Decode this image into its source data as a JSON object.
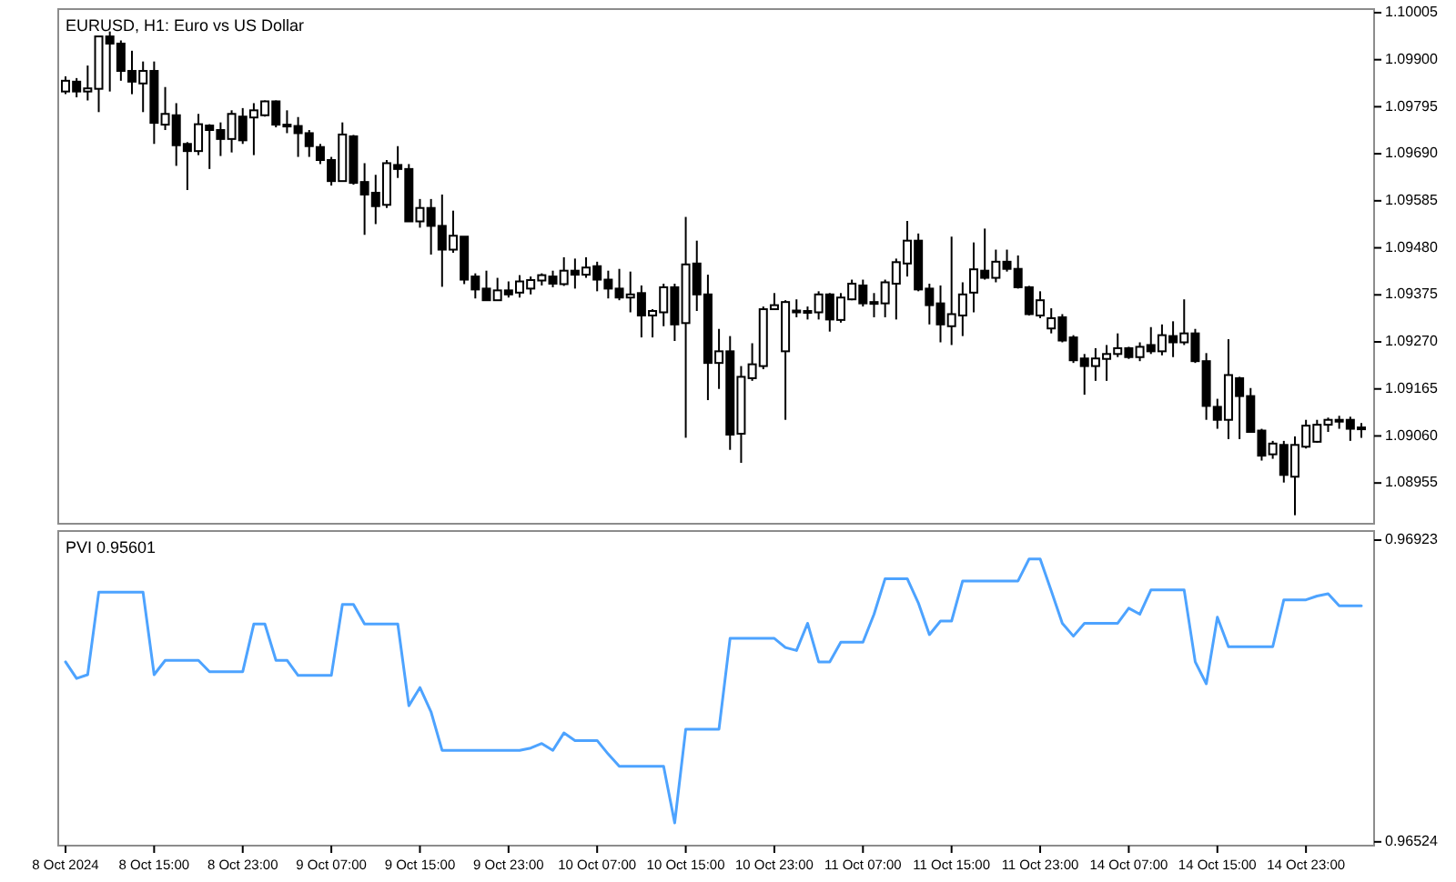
{
  "chart_data": [
    {
      "type": "candlestick",
      "title": "EURUSD, H1:  Euro vs US Dollar",
      "tick_labels": "y",
      "color": "#000000",
      "categories": [
        null,
        null,
        null,
        null,
        null,
        null,
        null,
        null,
        null,
        null,
        null,
        null,
        null,
        null,
        null,
        null,
        null,
        null,
        null,
        null,
        null,
        null,
        null,
        null,
        null,
        null,
        null,
        null,
        null,
        null,
        null,
        null,
        null,
        null,
        null,
        null,
        null,
        null,
        null,
        null,
        null,
        null,
        null,
        null,
        null,
        null,
        null,
        null,
        null,
        null,
        null,
        null,
        null,
        null,
        null,
        null,
        null,
        null,
        null,
        null,
        null,
        null,
        null,
        null,
        null,
        null,
        null,
        null,
        null,
        null,
        null,
        null,
        null,
        null,
        null,
        null,
        null,
        null,
        null,
        null,
        null,
        null,
        null,
        null,
        null,
        null,
        null,
        null,
        null,
        null,
        null,
        null,
        null,
        null,
        null,
        null,
        null,
        null,
        null,
        null,
        null,
        null,
        null,
        null,
        null,
        null,
        null,
        null,
        null,
        null,
        null,
        null,
        null,
        null,
        null,
        null,
        null,
        null
      ],
      "ohlc": [
        [
          1.09829,
          1.09863,
          1.09823,
          1.09853
        ],
        [
          1.09851,
          1.09859,
          1.09816,
          1.09829
        ],
        [
          1.09829,
          1.09887,
          1.09809,
          1.09836
        ],
        [
          1.09835,
          1.09952,
          1.09783,
          1.09952
        ],
        [
          1.09952,
          1.09963,
          1.09829,
          1.09936
        ],
        [
          1.09936,
          1.09943,
          1.09853,
          1.09875
        ],
        [
          1.09875,
          1.0992,
          1.09823,
          1.09851
        ],
        [
          1.09847,
          1.09896,
          1.09783,
          1.09875
        ],
        [
          1.09875,
          1.09896,
          1.09712,
          1.09759
        ],
        [
          1.09755,
          1.09839,
          1.09743,
          1.09779
        ],
        [
          1.09776,
          1.09803,
          1.09663,
          1.09709
        ],
        [
          1.09712,
          1.09716,
          1.09609,
          1.09696
        ],
        [
          1.09696,
          1.09779,
          1.09687,
          1.09756
        ],
        [
          1.09753,
          1.09756,
          1.09656,
          1.09743
        ],
        [
          1.09743,
          1.0976,
          1.09685,
          1.09723
        ],
        [
          1.09723,
          1.09787,
          1.09693,
          1.09779
        ],
        [
          1.09773,
          1.09792,
          1.09712,
          1.0972
        ],
        [
          1.09771,
          1.09803,
          1.09687,
          1.09787
        ],
        [
          1.09776,
          1.09809,
          1.09773,
          1.09807
        ],
        [
          1.09807,
          1.09809,
          1.09749,
          1.09755
        ],
        [
          1.09755,
          1.09787,
          1.09736,
          1.09752
        ],
        [
          1.09752,
          1.09772,
          1.09683,
          1.09736
        ],
        [
          1.09736,
          1.09743,
          1.09683,
          1.09707
        ],
        [
          1.09705,
          1.09712,
          1.09667,
          1.09676
        ],
        [
          1.09676,
          1.09683,
          1.09619,
          1.09629
        ],
        [
          1.09629,
          1.0976,
          1.09629,
          1.09733
        ],
        [
          1.09729,
          1.09732,
          1.09621,
          1.09625
        ],
        [
          1.09627,
          1.09669,
          1.09509,
          1.09599
        ],
        [
          1.09603,
          1.09643,
          1.09533,
          1.09573
        ],
        [
          1.09576,
          1.09676,
          1.09569,
          1.09669
        ],
        [
          1.09665,
          1.09707,
          1.09636,
          1.09656
        ],
        [
          1.09656,
          1.09667,
          1.09539,
          1.09539
        ],
        [
          1.09539,
          1.09589,
          1.09525,
          1.09569
        ],
        [
          1.09569,
          1.09589,
          1.09465,
          1.09529
        ],
        [
          1.09529,
          1.09599,
          1.09393,
          1.09476
        ],
        [
          1.09476,
          1.09563,
          1.09469,
          1.09507
        ],
        [
          1.09505,
          1.09505,
          1.09399,
          1.09409
        ],
        [
          1.09416,
          1.09423,
          1.09367,
          1.09387
        ],
        [
          1.09389,
          1.09429,
          1.09363,
          1.09363
        ],
        [
          1.09363,
          1.09413,
          1.09363,
          1.09385
        ],
        [
          1.09385,
          1.09405,
          1.09369,
          1.09376
        ],
        [
          1.0938,
          1.09419,
          1.09369,
          1.09405
        ],
        [
          1.09389,
          1.09416,
          1.09376,
          1.09408
        ],
        [
          1.09407,
          1.09423,
          1.09396,
          1.09419
        ],
        [
          1.09416,
          1.09429,
          1.09392,
          1.094
        ],
        [
          1.09399,
          1.09459,
          1.09395,
          1.09429
        ],
        [
          1.09429,
          1.09456,
          1.09389,
          1.0942
        ],
        [
          1.0942,
          1.09459,
          1.09413,
          1.09436
        ],
        [
          1.09439,
          1.09449,
          1.09383,
          1.09409
        ],
        [
          1.09409,
          1.09429,
          1.09367,
          1.09389
        ],
        [
          1.09389,
          1.09433,
          1.09363,
          1.09369
        ],
        [
          1.09369,
          1.09427,
          1.09336,
          1.09376
        ],
        [
          1.09379,
          1.09396,
          1.0928,
          1.09329
        ],
        [
          1.09329,
          1.09343,
          1.0928,
          1.09339
        ],
        [
          1.09336,
          1.094,
          1.09305,
          1.09392
        ],
        [
          1.09392,
          1.094,
          1.09272,
          1.09309
        ],
        [
          1.09312,
          1.09549,
          1.09056,
          1.09443
        ],
        [
          1.09445,
          1.09496,
          1.09339,
          1.09376
        ],
        [
          1.09376,
          1.0942,
          1.0914,
          1.09223
        ],
        [
          1.09223,
          1.09299,
          1.09165,
          1.09249
        ],
        [
          1.09249,
          1.09283,
          1.09029,
          1.09063
        ],
        [
          1.09065,
          1.09216,
          1.09,
          1.09192
        ],
        [
          1.09189,
          1.09267,
          1.09183,
          1.0922
        ],
        [
          1.09216,
          1.09349,
          1.09209,
          1.09343
        ],
        [
          1.09343,
          1.09379,
          1.09343,
          1.09352
        ],
        [
          1.09249,
          1.09363,
          1.09096,
          1.09359
        ],
        [
          1.09337,
          1.09365,
          1.09325,
          1.0934
        ],
        [
          1.09339,
          1.09349,
          1.0932,
          1.09336
        ],
        [
          1.09336,
          1.09383,
          1.0932,
          1.09376
        ],
        [
          1.09376,
          1.09379,
          1.09293,
          1.0932
        ],
        [
          1.09319,
          1.09379,
          1.09313,
          1.09369
        ],
        [
          1.09365,
          1.09409,
          1.09363,
          1.094
        ],
        [
          1.09396,
          1.09409,
          1.09349,
          1.09356
        ],
        [
          1.09356,
          1.09379,
          1.09325,
          1.09359
        ],
        [
          1.09356,
          1.09409,
          1.09325,
          1.09403
        ],
        [
          1.094,
          1.09456,
          1.0932,
          1.09448
        ],
        [
          1.09445,
          1.0954,
          1.09416,
          1.09496
        ],
        [
          1.09496,
          1.09512,
          1.09383,
          1.09387
        ],
        [
          1.09389,
          1.094,
          1.09309,
          1.09352
        ],
        [
          1.09356,
          1.09396,
          1.09269,
          1.09309
        ],
        [
          1.09305,
          1.09505,
          1.09263,
          1.09332
        ],
        [
          1.09329,
          1.09403,
          1.09283,
          1.09376
        ],
        [
          1.0938,
          1.09492,
          1.09336,
          1.09432
        ],
        [
          1.09429,
          1.09523,
          1.09409,
          1.09413
        ],
        [
          1.09413,
          1.09476,
          1.09403,
          1.09449
        ],
        [
          1.09449,
          1.09476,
          1.09427,
          1.09433
        ],
        [
          1.09433,
          1.09463,
          1.09389,
          1.09392
        ],
        [
          1.09392,
          1.09395,
          1.09329,
          1.09332
        ],
        [
          1.09329,
          1.09383,
          1.09323,
          1.09363
        ],
        [
          1.093,
          1.09345,
          1.09289,
          1.09323
        ],
        [
          1.09325,
          1.09332,
          1.09269,
          1.09273
        ],
        [
          1.0928,
          1.09285,
          1.09223,
          1.09229
        ],
        [
          1.09233,
          1.09243,
          1.09152,
          1.09216
        ],
        [
          1.09216,
          1.09256,
          1.09183,
          1.09233
        ],
        [
          1.09232,
          1.09263,
          1.09183,
          1.09243
        ],
        [
          1.09243,
          1.09289,
          1.09236,
          1.09256
        ],
        [
          1.09256,
          1.09259,
          1.09232,
          1.09236
        ],
        [
          1.09236,
          1.09269,
          1.09227,
          1.09259
        ],
        [
          1.09263,
          1.09303,
          1.09243,
          1.09249
        ],
        [
          1.09249,
          1.09309,
          1.0924,
          1.09285
        ],
        [
          1.09283,
          1.09316,
          1.09236,
          1.09269
        ],
        [
          1.09269,
          1.09365,
          1.09263,
          1.09289
        ],
        [
          1.09289,
          1.09299,
          1.09223,
          1.09227
        ],
        [
          1.09227,
          1.09245,
          1.09096,
          1.09127
        ],
        [
          1.09125,
          1.09143,
          1.09076,
          1.09096
        ],
        [
          1.09096,
          1.09276,
          1.09053,
          1.09196
        ],
        [
          1.09189,
          1.09192,
          1.09053,
          1.09149
        ],
        [
          1.09149,
          1.09167,
          1.09067,
          1.09069
        ],
        [
          1.09072,
          1.09076,
          1.09005,
          1.09016
        ],
        [
          1.09019,
          1.09049,
          1.09009,
          1.09043
        ],
        [
          1.0904,
          1.09049,
          1.08956,
          1.08973
        ],
        [
          1.08969,
          1.09059,
          1.08883,
          1.0904
        ],
        [
          1.09036,
          1.09096,
          1.09032,
          1.09083
        ],
        [
          1.09047,
          1.09096,
          1.09045,
          1.09085
        ],
        [
          1.09085,
          1.09101,
          1.09069,
          1.09096
        ],
        [
          1.09093,
          1.09105,
          1.09076,
          1.09096
        ],
        [
          1.09096,
          1.09103,
          1.09049,
          1.09076
        ],
        [
          1.09076,
          1.09089,
          1.09056,
          1.09079
        ]
      ],
      "ylim": [
        1.08864,
        1.10013
      ],
      "yticks": [
        1.10005,
        {
          "value": 1.099,
          "label": "1.09900"
        },
        1.09795,
        {
          "value": 1.0969,
          "label": "1.09690"
        },
        1.09585,
        {
          "value": 1.0948,
          "label": "1.09480"
        },
        1.09375,
        {
          "value": 1.0927,
          "label": "1.09270"
        },
        1.09165,
        {
          "value": 1.0906,
          "label": "1.09060"
        },
        1.08955
      ]
    },
    {
      "type": "line",
      "title": "PVI 0.95601",
      "color": "#4da3ff",
      "categories": [
        "8 Oct 2024",
        null,
        null,
        null,
        null,
        null,
        null,
        null,
        "8 Oct 15:00",
        null,
        null,
        null,
        null,
        null,
        null,
        null,
        "8 Oct 23:00",
        null,
        null,
        null,
        null,
        null,
        null,
        null,
        "9 Oct 07:00",
        null,
        null,
        null,
        null,
        null,
        null,
        null,
        "9 Oct 15:00",
        null,
        null,
        null,
        null,
        null,
        null,
        null,
        "9 Oct 23:00",
        null,
        null,
        null,
        null,
        null,
        null,
        null,
        "10 Oct 07:00",
        null,
        null,
        null,
        null,
        null,
        null,
        null,
        "10 Oct 15:00",
        null,
        null,
        null,
        null,
        null,
        null,
        null,
        "10 Oct 23:00",
        null,
        null,
        null,
        null,
        null,
        null,
        null,
        "11 Oct 07:00",
        null,
        null,
        null,
        null,
        null,
        null,
        null,
        "11 Oct 15:00",
        null,
        null,
        null,
        null,
        null,
        null,
        null,
        "11 Oct 23:00",
        null,
        null,
        null,
        null,
        null,
        null,
        null,
        "14 Oct 07:00",
        null,
        null,
        null,
        null,
        null,
        null,
        null,
        "14 Oct 15:00",
        null,
        null,
        null,
        null,
        null,
        null,
        null,
        "14 Oct 23:00",
        null,
        null,
        null,
        null,
        null
      ],
      "values": [
        0.96762,
        0.9674,
        0.96745,
        0.96854,
        0.96854,
        0.96854,
        0.96854,
        0.96854,
        0.96745,
        0.96764,
        0.96764,
        0.96764,
        0.96764,
        0.96749,
        0.96749,
        0.96749,
        0.96749,
        0.96812,
        0.96812,
        0.96764,
        0.96764,
        0.96744,
        0.96744,
        0.96744,
        0.96744,
        0.96838,
        0.96838,
        0.96812,
        0.96812,
        0.96812,
        0.96812,
        0.96704,
        0.96728,
        0.96696,
        0.96645,
        0.96645,
        0.96645,
        0.96645,
        0.96645,
        0.96645,
        0.96645,
        0.96645,
        0.96648,
        0.96654,
        0.96645,
        0.96668,
        0.96658,
        0.96658,
        0.96658,
        0.9664,
        0.96624,
        0.96624,
        0.96624,
        0.96624,
        0.96624,
        0.96549,
        0.96673,
        0.96673,
        0.96673,
        0.96673,
        0.96793,
        0.96793,
        0.96793,
        0.96793,
        0.96793,
        0.96781,
        0.96777,
        0.96813,
        0.96762,
        0.96762,
        0.96788,
        0.96788,
        0.96788,
        0.96825,
        0.96872,
        0.96872,
        0.96872,
        0.9684,
        0.96798,
        0.96816,
        0.96816,
        0.96869,
        0.96869,
        0.96869,
        0.96869,
        0.96869,
        0.96869,
        0.96898,
        0.96898,
        0.96856,
        0.96813,
        0.96796,
        0.96813,
        0.96813,
        0.96813,
        0.96813,
        0.96833,
        0.96825,
        0.96857,
        0.96857,
        0.96857,
        0.96857,
        0.96762,
        0.96733,
        0.96821,
        0.96782,
        0.96782,
        0.96782,
        0.96782,
        0.96782,
        0.96844,
        0.96844,
        0.96844,
        0.96849,
        0.96852,
        0.96836,
        0.96836,
        0.96836
      ],
      "ylim": [
        0.96519,
        0.96935
      ],
      "yticks": [
        0.96923,
        0.96524
      ]
    }
  ]
}
